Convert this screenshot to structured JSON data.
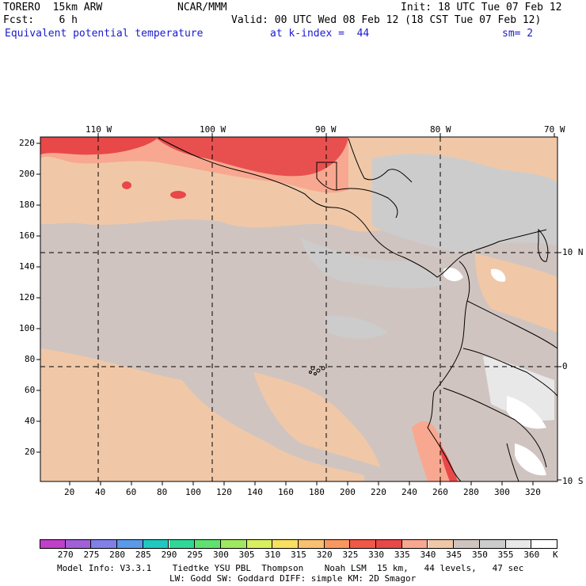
{
  "header": {
    "model": "TORERO  15km ARW",
    "org": "NCAR/MMM",
    "init": "Init: 18 UTC Tue 07 Feb 12",
    "fcst": "Fcst:    6 h",
    "valid": "Valid: 00 UTC Wed 08 Feb 12 (18 CST Tue 07 Feb 12)",
    "field": "Equivalent potential temperature",
    "level": "at k-index =  44",
    "smooth": "sm= 2"
  },
  "map": {
    "top_lon_labels": [
      "110 W",
      "100 W",
      "90 W",
      "80 W",
      "70 W"
    ],
    "right_lat_labels": [
      "10 N",
      "0",
      "10 S"
    ],
    "y_axis_ticks": [
      "220",
      "200",
      "180",
      "160",
      "140",
      "120",
      "100",
      "80",
      "60",
      "40",
      "20"
    ],
    "x_axis_ticks": [
      "20",
      "40",
      "60",
      "80",
      "100",
      "120",
      "140",
      "160",
      "180",
      "200",
      "220",
      "240",
      "260",
      "280",
      "300",
      "320"
    ]
  },
  "colorbar": {
    "unit": "K",
    "levels": [
      "270",
      "275",
      "280",
      "285",
      "290",
      "295",
      "300",
      "305",
      "310",
      "315",
      "320",
      "325",
      "330",
      "335",
      "340",
      "345",
      "350",
      "355",
      "360"
    ],
    "colors": [
      "#c040c8",
      "#a060d8",
      "#8080e8",
      "#5a9ae8",
      "#20c8c0",
      "#30d898",
      "#60e070",
      "#a0e860",
      "#d8f060",
      "#f8e060",
      "#f8c070",
      "#f89860",
      "#f05848",
      "#e84848",
      "#f8a890",
      "#f0c8a8",
      "#d0c4c0",
      "#cccccc",
      "#e8e8e8",
      "#ffffff"
    ]
  },
  "footer": {
    "line1": "Model Info: V3.3.1    Tiedtke YSU PBL  Thompson    Noah LSM  15 km,   44 levels,   47 sec",
    "line2": "LW: Godd SW: Goddard DIFF: simple KM: 2D Smagor"
  }
}
